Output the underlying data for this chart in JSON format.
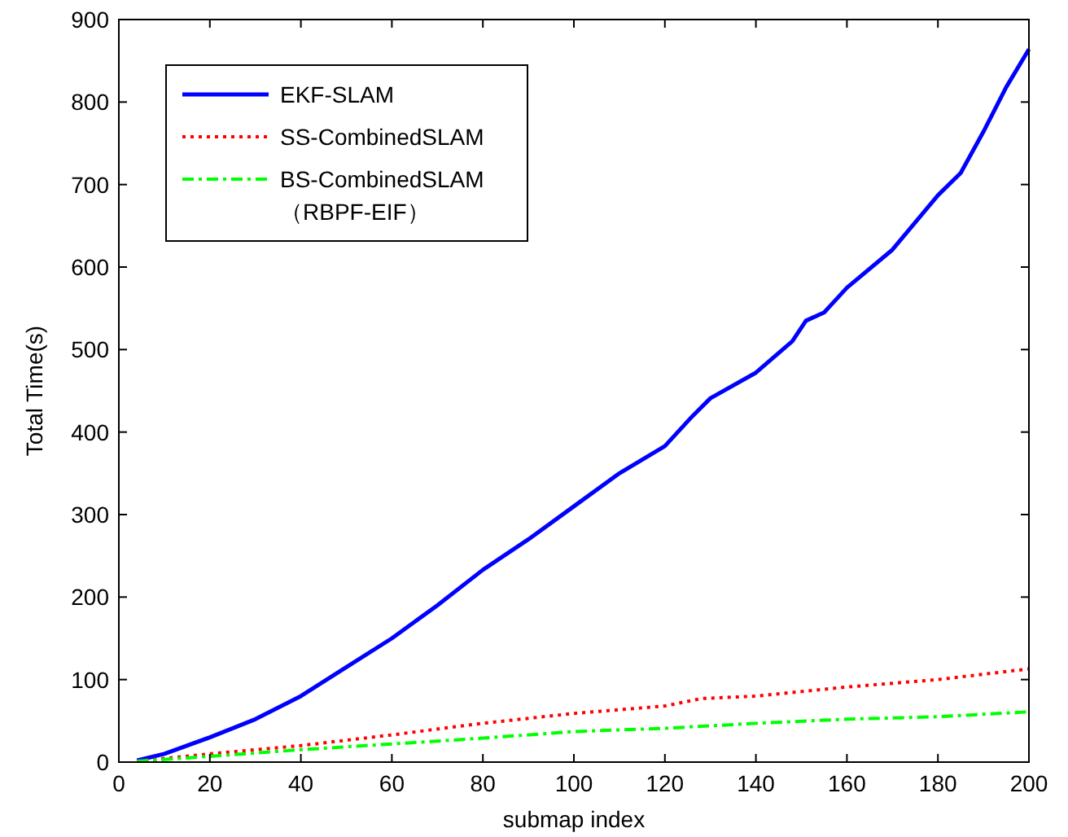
{
  "chart_data": {
    "type": "line",
    "xlabel": "submap index",
    "ylabel": "Total Time(s)",
    "xlim": [
      0,
      200
    ],
    "xticks": [
      0,
      20,
      40,
      60,
      80,
      100,
      120,
      140,
      160,
      180,
      200
    ],
    "ylim": [
      0,
      900
    ],
    "yticks": [
      0,
      100,
      200,
      300,
      400,
      500,
      600,
      700,
      800,
      900
    ],
    "grid": false,
    "legend": "top left",
    "marker": "none",
    "series": [
      {
        "name": "EKF-SLAM",
        "color": "#0000ff",
        "line_style": "solid",
        "x": [
          4,
          10,
          20,
          30,
          40,
          50,
          60,
          70,
          80,
          90,
          100,
          110,
          120,
          126,
          130,
          140,
          148,
          151,
          155,
          160,
          170,
          180,
          185,
          190,
          195,
          200
        ],
        "values": [
          2,
          10,
          30,
          52,
          80,
          115,
          150,
          190,
          233,
          270,
          310,
          350,
          383,
          419,
          441,
          472,
          510,
          535,
          545,
          575,
          621,
          687,
          714,
          764,
          818,
          864
        ]
      },
      {
        "name": "SS-CombinedSLAM",
        "color": "#ff0000",
        "line_style": "dotted",
        "x": [
          4,
          20,
          40,
          60,
          80,
          100,
          120,
          128,
          140,
          160,
          180,
          200
        ],
        "values": [
          1,
          10,
          20,
          33,
          47,
          59,
          68,
          77,
          80,
          91,
          100,
          113
        ]
      },
      {
        "name": "BS-CombinedSLAM\n（RBPF-EIF）",
        "color": "#00ff00",
        "line_style": "dashed",
        "x": [
          4,
          20,
          40,
          60,
          80,
          100,
          120,
          140,
          160,
          180,
          200
        ],
        "values": [
          1,
          7,
          15,
          22,
          29,
          37,
          41,
          47,
          52,
          55,
          61
        ]
      }
    ]
  }
}
